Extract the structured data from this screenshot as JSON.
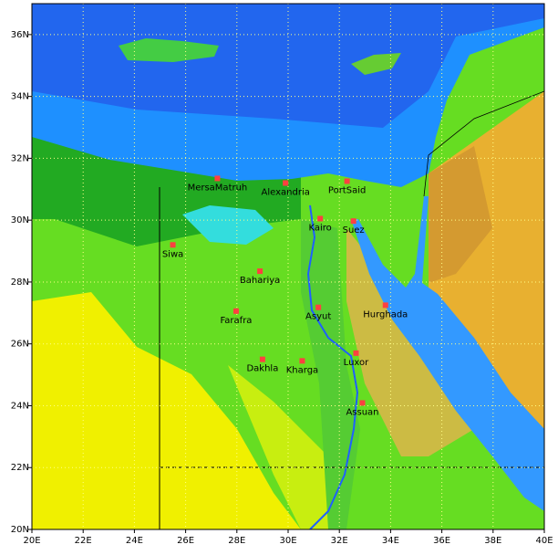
{
  "map": {
    "xlim": [
      20,
      40
    ],
    "ylim": [
      20,
      37
    ],
    "xticks": [
      {
        "value": 20,
        "label": "20E"
      },
      {
        "value": 22,
        "label": "22E"
      },
      {
        "value": 24,
        "label": "24E"
      },
      {
        "value": 26,
        "label": "26E"
      },
      {
        "value": 28,
        "label": "28E"
      },
      {
        "value": 30,
        "label": "30E"
      },
      {
        "value": 32,
        "label": "32E"
      },
      {
        "value": 34,
        "label": "34E"
      },
      {
        "value": 36,
        "label": "36E"
      },
      {
        "value": 38,
        "label": "38E"
      },
      {
        "value": 40,
        "label": "40E"
      }
    ],
    "yticks": [
      {
        "value": 20,
        "label": "20N"
      },
      {
        "value": 22,
        "label": "22N"
      },
      {
        "value": 24,
        "label": "24N"
      },
      {
        "value": 26,
        "label": "26N"
      },
      {
        "value": 28,
        "label": "28N"
      },
      {
        "value": 30,
        "label": "30N"
      },
      {
        "value": 32,
        "label": "32N"
      },
      {
        "value": 34,
        "label": "34N"
      },
      {
        "value": 36,
        "label": "36N"
      }
    ],
    "grid": true,
    "marker_color": "#ff4040",
    "cities": [
      {
        "name": "MersaMatruh",
        "lon": 27.24,
        "lat": 31.35
      },
      {
        "name": "Alexandria",
        "lon": 29.9,
        "lat": 31.2
      },
      {
        "name": "PortSaid",
        "lon": 32.3,
        "lat": 31.26
      },
      {
        "name": "Kairo",
        "lon": 31.25,
        "lat": 30.05
      },
      {
        "name": "Suez",
        "lon": 32.55,
        "lat": 29.97
      },
      {
        "name": "Siwa",
        "lon": 25.5,
        "lat": 29.2
      },
      {
        "name": "Bahariya",
        "lon": 28.9,
        "lat": 28.35
      },
      {
        "name": "Farafra",
        "lon": 27.97,
        "lat": 27.06
      },
      {
        "name": "Asyut",
        "lon": 31.18,
        "lat": 27.18
      },
      {
        "name": "Hurghada",
        "lon": 33.8,
        "lat": 27.25
      },
      {
        "name": "Luxor",
        "lon": 32.65,
        "lat": 25.7
      },
      {
        "name": "Dakhla",
        "lon": 29.0,
        "lat": 25.5
      },
      {
        "name": "Kharga",
        "lon": 30.55,
        "lat": 25.45
      },
      {
        "name": "Assuan",
        "lon": 32.9,
        "lat": 24.09
      }
    ]
  }
}
